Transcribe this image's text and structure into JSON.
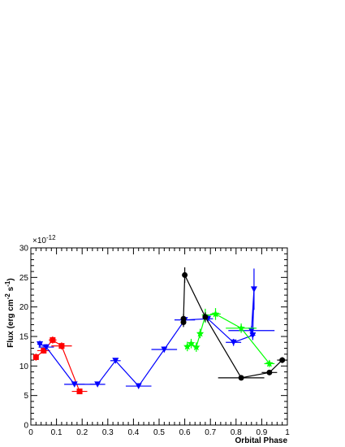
{
  "chart_data": {
    "type": "scatter",
    "title": "",
    "xlabel": "Orbital Phase",
    "ylabel_parts": [
      "Flux (erg cm",
      "-2",
      " s",
      "-1",
      ")"
    ],
    "y_multiplier_base": "×10",
    "y_multiplier_exp": "-12",
    "xlim": [
      0,
      1
    ],
    "ylim": [
      0,
      30
    ],
    "x_ticks": [
      0,
      0.1,
      0.2,
      0.3,
      0.4,
      0.5,
      0.6,
      0.7,
      0.8,
      0.9,
      1
    ],
    "x_tick_labels": [
      "0",
      "0.1",
      "0.2",
      "0.3",
      "0.4",
      "0.5",
      "0.6",
      "0.7",
      "0.8",
      "0.9",
      "1"
    ],
    "y_ticks": [
      0,
      5,
      10,
      15,
      20,
      25,
      30
    ],
    "y_tick_labels": [
      "0",
      "5",
      "10",
      "15",
      "20",
      "25",
      "30"
    ],
    "grid": false,
    "series": [
      {
        "color": "#ff0000",
        "marker": "square",
        "points": [
          {
            "x": 0.02,
            "y": 11.5,
            "xerr": 0.01,
            "yerr": 0.6
          },
          {
            "x": 0.05,
            "y": 12.6,
            "xerr": 0.025,
            "yerr": 0.5
          },
          {
            "x": 0.085,
            "y": 14.4,
            "xerr": 0.015,
            "yerr": 0.6
          },
          {
            "x": 0.12,
            "y": 13.4,
            "xerr": 0.04,
            "yerr": 0.6
          },
          {
            "x": 0.19,
            "y": 5.7,
            "xerr": 0.03,
            "yerr": 0.3
          }
        ]
      },
      {
        "color": "#0000ff",
        "marker": "triangle-down",
        "points": [
          {
            "x": 0.035,
            "y": 13.7,
            "xerr": 0.01,
            "yerr": 0.6
          },
          {
            "x": 0.06,
            "y": 13.2,
            "xerr": 0.03,
            "yerr": 0.5
          },
          {
            "x": 0.17,
            "y": 6.9,
            "xerr": 0.04,
            "yerr": 0.3
          },
          {
            "x": 0.26,
            "y": 6.9,
            "xerr": 0.03,
            "yerr": 0.3
          },
          {
            "x": 0.33,
            "y": 10.9,
            "xerr": 0.02,
            "yerr": 0.4
          },
          {
            "x": 0.42,
            "y": 6.6,
            "xerr": 0.05,
            "yerr": 0.3
          },
          {
            "x": 0.52,
            "y": 12.8,
            "xerr": 0.05,
            "yerr": 0.5
          },
          {
            "x": 0.6,
            "y": 17.8,
            "xerr": 0.04,
            "yerr": 0.6
          },
          {
            "x": 0.69,
            "y": 18.0,
            "xerr": 0.02,
            "yerr": 0.6
          },
          {
            "x": 0.79,
            "y": 14.0,
            "xerr": 0.03,
            "yerr": 0.6
          },
          {
            "x": 0.865,
            "y": 15.2,
            "xerr": 0.01,
            "yerr": 0.8
          },
          {
            "x": 0.87,
            "y": 23.0,
            "xerr": 0.005,
            "yerr": 3.5
          },
          {
            "x": 0.86,
            "y": 16.0,
            "xerr": 0.09,
            "yerr": 0.8
          }
        ]
      },
      {
        "color": "#00ff00",
        "marker": "star",
        "points": [
          {
            "x": 0.61,
            "y": 13.3,
            "xerr": 0.01,
            "yerr": 0.8
          },
          {
            "x": 0.625,
            "y": 13.8,
            "xerr": 0.01,
            "yerr": 0.8
          },
          {
            "x": 0.645,
            "y": 13.2,
            "xerr": 0.01,
            "yerr": 0.8
          },
          {
            "x": 0.66,
            "y": 15.5,
            "xerr": 0.01,
            "yerr": 0.8
          },
          {
            "x": 0.68,
            "y": 18.5,
            "xerr": 0.01,
            "yerr": 1.2
          },
          {
            "x": 0.72,
            "y": 18.8,
            "xerr": 0.02,
            "yerr": 1.0
          },
          {
            "x": 0.82,
            "y": 16.4,
            "xerr": 0.06,
            "yerr": 0.8
          },
          {
            "x": 0.93,
            "y": 10.4,
            "xerr": 0.02,
            "yerr": 0.6
          }
        ]
      },
      {
        "color": "#000000",
        "marker": "circle",
        "points": [
          {
            "x": 0.595,
            "y": 17.4,
            "xerr": 0.005,
            "yerr": 0.8
          },
          {
            "x": 0.595,
            "y": 18.0,
            "xerr": 0.005,
            "yerr": 0.8
          },
          {
            "x": 0.6,
            "y": 25.4,
            "xerr": 0.005,
            "yerr": 1.3
          },
          {
            "x": 0.68,
            "y": 18.3,
            "xerr": 0.01,
            "yerr": 0.8
          },
          {
            "x": 0.82,
            "y": 8.0,
            "xerr": 0.09,
            "yerr": 0.4
          },
          {
            "x": 0.93,
            "y": 8.9,
            "xerr": 0.03,
            "yerr": 0.4
          },
          {
            "x": 0.98,
            "y": 11.0,
            "xerr": 0.02,
            "yerr": 0.5
          }
        ]
      }
    ]
  }
}
